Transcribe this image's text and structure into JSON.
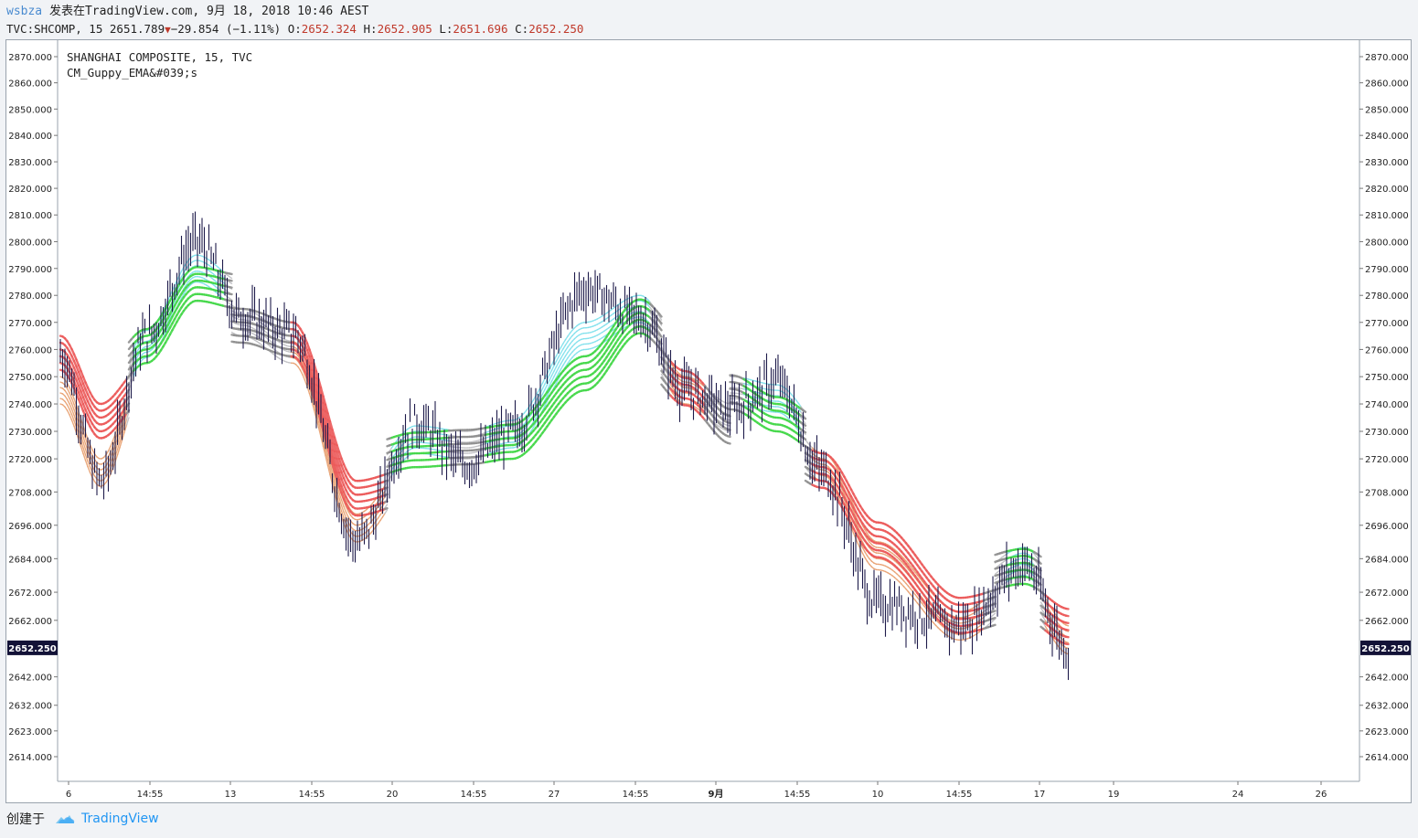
{
  "header": {
    "author": "wsbza",
    "published_text": "发表在TradingView.com, 9月 18, 2018 10:46 AEST"
  },
  "symbol_row": {
    "symbol": "TVC:SHCOMP, 15",
    "last": "2651.789",
    "change_icon": "down-triangle-icon",
    "change": "−29.854 (−1.11%)",
    "open_label": "O:",
    "open": "2652.324",
    "high_label": "H:",
    "high": "2652.905",
    "low_label": "L:",
    "low": "2651.696",
    "close_label": "C:",
    "close": "2652.250"
  },
  "legend": {
    "title": "SHANGHAI COMPOSITE, 15, TVC",
    "indicator": "CM_Guppy_EMA&#039;s"
  },
  "footer": {
    "created_with": "创建于",
    "brand_icon": "tradingview-cloud-icon",
    "brand": "TradingView"
  },
  "colors": {
    "candle": "#1e1b4b",
    "ema_fast_down": "#e8a070",
    "ema_fast_up": "#7fe0ec",
    "ema_neutral": "#c0c0c4",
    "ema_slow_down": "#ec5a5a",
    "ema_slow_up": "#45d84a",
    "ema_slow_neutral": "#909090",
    "last_price_badge": "#131237"
  },
  "chart_data": {
    "type": "line",
    "title": "SHANGHAI COMPOSITE, 15, TVC",
    "y_scale": "log",
    "ylim": [
      2604,
      2873
    ],
    "y_ticks": [
      "2870.000",
      "2860.000",
      "2850.000",
      "2840.000",
      "2830.000",
      "2820.000",
      "2810.000",
      "2800.000",
      "2790.000",
      "2780.000",
      "2770.000",
      "2760.000",
      "2750.000",
      "2740.000",
      "2730.000",
      "2720.000",
      "2708.000",
      "2696.000",
      "2684.000",
      "2672.000",
      "2662.000",
      "2642.000",
      "2632.000",
      "2623.000",
      "2614.000"
    ],
    "y_tick_values": [
      2870,
      2860,
      2850,
      2840,
      2830,
      2820,
      2810,
      2800,
      2790,
      2780,
      2770,
      2760,
      2750,
      2740,
      2730,
      2720,
      2708,
      2696,
      2684,
      2672,
      2662,
      2642,
      2632,
      2623,
      2614
    ],
    "x_ticks": [
      "6",
      "14:55",
      "13",
      "14:55",
      "20",
      "14:55",
      "27",
      "14:55",
      "9月",
      "14:55",
      "10",
      "14:55",
      "17",
      "19",
      "24",
      "26"
    ],
    "last_price_label": "2652.250",
    "last_price": 2652.25,
    "grid": false,
    "series": [
      {
        "name": "SHCOMP",
        "x": [
          "8/6",
          "8/8",
          "8/10",
          "8/13",
          "8/15",
          "8/17",
          "8/20",
          "8/22",
          "8/24",
          "8/27",
          "8/29",
          "8/31",
          "9/3",
          "9/5",
          "9/7",
          "9/10",
          "9/12",
          "9/14",
          "9/17",
          "9/18"
        ],
        "values": [
          2758,
          2712,
          2765,
          2800,
          2772,
          2766,
          2690,
          2733,
          2718,
          2730,
          2782,
          2772,
          2745,
          2738,
          2748,
          2715,
          2668,
          2660,
          2682,
          2652
        ]
      },
      {
        "name": "",
        "x": [
          "8/6",
          "8/8",
          "8/10",
          "8/13",
          "8/15",
          "8/17",
          "8/20",
          "8/22",
          "8/24",
          "8/27",
          "8/29",
          "8/31",
          "9/3",
          "9/5",
          "9/7",
          "9/10",
          "9/12",
          "9/14",
          "9/17",
          "9/18"
        ],
        "values": [
          2750,
          2720,
          2757,
          2785,
          2775,
          2765,
          2700,
          2722,
          2720,
          2724,
          2760,
          2770,
          2750,
          2740,
          2737,
          2722,
          2690,
          2665,
          2678,
          2660
        ]
      },
      {
        "name": "",
        "x": [
          "8/6",
          "8/8",
          "8/10",
          "8/13",
          "8/15",
          "8/17",
          "8/20",
          "8/22",
          "8/24",
          "8/27",
          "8/29",
          "8/31",
          "9/3",
          "9/5",
          "9/7",
          "9/10",
          "9/12",
          "9/14",
          "9/17",
          "9/18"
        ],
        "values": [
          2765,
          2740,
          2755,
          2778,
          2775,
          2770,
          2712,
          2717,
          2718,
          2720,
          2745,
          2766,
          2752,
          2738,
          2730,
          2722,
          2697,
          2670,
          2675,
          2666
        ]
      }
    ]
  }
}
